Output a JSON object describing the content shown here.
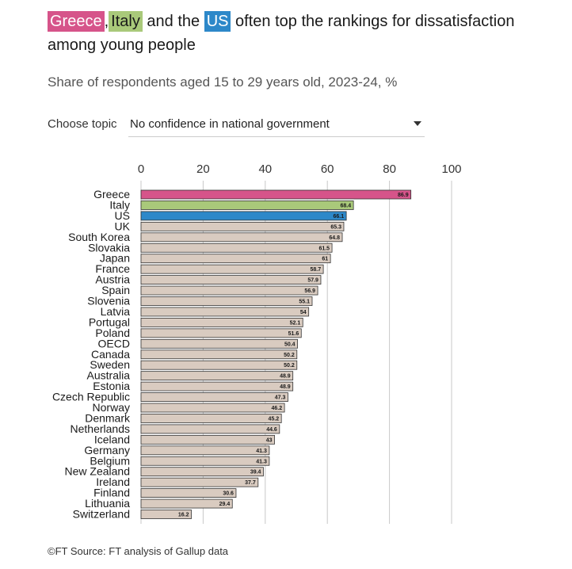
{
  "headline": {
    "greece": "Greece",
    "comma": ",",
    "italy": "Italy",
    "and_the": " and the ",
    "us": "US",
    "rest": " often top the rankings for dissatisfaction among young people"
  },
  "subtitle": "Share of respondents aged 15 to 29 years old, 2023-24, %",
  "topic": {
    "label": "Choose topic",
    "value": "No confidence in national government"
  },
  "source": "©FT Source: FT analysis of Gallup data",
  "colors": {
    "greece": "#d6548a",
    "italy": "#a9c97a",
    "us": "#2d88c9",
    "default": "#d9cbc0",
    "bar_stroke": "#333333",
    "grid": "#c8c8c8"
  },
  "chart_data": {
    "type": "bar",
    "orientation": "horizontal",
    "title": "Greece, Italy and the US often top the rankings for dissatisfaction among young people",
    "subtitle": "Share of respondents aged 15 to 29 years old, 2023-24, %",
    "xlim": [
      0,
      100
    ],
    "xticks": [
      0,
      20,
      40,
      60,
      80,
      100
    ],
    "grid": true,
    "categories": [
      "Greece",
      "Italy",
      "US",
      "UK",
      "South Korea",
      "Slovakia",
      "Japan",
      "France",
      "Austria",
      "Spain",
      "Slovenia",
      "Latvia",
      "Portugal",
      "Poland",
      "OECD",
      "Canada",
      "Sweden",
      "Australia",
      "Estonia",
      "Czech Republic",
      "Norway",
      "Denmark",
      "Netherlands",
      "Iceland",
      "Germany",
      "Belgium",
      "New Zealand",
      "Ireland",
      "Finland",
      "Lithuania",
      "Switzerland"
    ],
    "values": [
      86.9,
      68.4,
      66.1,
      65.3,
      64.8,
      61.5,
      61,
      58.7,
      57.9,
      56.9,
      55.1,
      54,
      52.1,
      51.6,
      50.4,
      50.2,
      50.2,
      48.9,
      48.9,
      47.3,
      46.2,
      45.2,
      44.6,
      43,
      41.3,
      41.3,
      39.4,
      37.7,
      30.6,
      29.4,
      16.2
    ],
    "highlight": {
      "Greece": "greece",
      "Italy": "italy",
      "US": "us"
    }
  }
}
